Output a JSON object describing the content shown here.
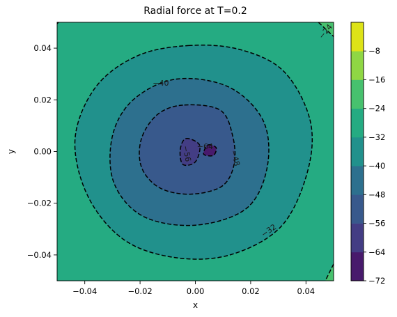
{
  "chart_data": {
    "type": "heatmap",
    "subtype": "filled-contour",
    "title": "Radial force at T=0.2",
    "xlabel": "x",
    "ylabel": "y",
    "xlim": [
      -0.05,
      0.05
    ],
    "ylim": [
      -0.05,
      0.05
    ],
    "x_ticks": [
      -0.04,
      -0.02,
      0.0,
      0.02,
      0.04
    ],
    "x_tick_labels": [
      "−0.04",
      "−0.02",
      "0.00",
      "0.02",
      "0.04"
    ],
    "y_ticks": [
      -0.04,
      -0.02,
      0.0,
      0.02,
      0.04
    ],
    "y_tick_labels": [
      "−0.04",
      "−0.02",
      "0.00",
      "0.02",
      "0.04"
    ],
    "grid": false,
    "colormap": "viridis",
    "levels": [
      -72,
      -64,
      -56,
      -48,
      -40,
      -32,
      -24,
      -16,
      -8
    ],
    "colorbar_tick_labels": [
      "−72",
      "−64",
      "−56",
      "−48",
      "−40",
      "−32",
      "−24",
      "−16",
      "−8"
    ],
    "band_colors": [
      "#481a6c",
      "#433d84",
      "#38598c",
      "#2d708e",
      "#21918c",
      "#25ab82",
      "#47c16e",
      "#8fd744",
      "#dde318"
    ],
    "contour_line_style": "dashed",
    "contour_line_color": "#000000",
    "contours": [
      {
        "level": -32,
        "points": [
          [
            -0.0025,
            0.041
          ],
          [
            0.016,
            0.0395
          ],
          [
            0.032,
            0.031
          ],
          [
            0.0415,
            0.012
          ],
          [
            0.0405,
            -0.008
          ],
          [
            0.031,
            -0.029
          ],
          [
            0.0125,
            -0.04
          ],
          [
            -0.0075,
            -0.041
          ],
          [
            -0.026,
            -0.034
          ],
          [
            -0.039,
            -0.017
          ],
          [
            -0.0435,
            0.005
          ],
          [
            -0.036,
            0.025
          ],
          [
            -0.021,
            0.037
          ]
        ]
      },
      {
        "level": -40,
        "points": [
          [
            -0.007,
            0.028
          ],
          [
            0.012,
            0.025
          ],
          [
            0.0245,
            0.012
          ],
          [
            0.026,
            -0.006
          ],
          [
            0.0185,
            -0.022
          ],
          [
            0.0,
            -0.0285
          ],
          [
            -0.019,
            -0.025
          ],
          [
            -0.0295,
            -0.012
          ],
          [
            -0.03,
            0.006
          ],
          [
            -0.0225,
            0.02
          ]
        ]
      },
      {
        "level": -48,
        "points": [
          [
            -0.004,
            0.018
          ],
          [
            0.009,
            0.016
          ],
          [
            0.0135,
            0.006
          ],
          [
            0.014,
            -0.005
          ],
          [
            0.0095,
            -0.0135
          ],
          [
            -0.002,
            -0.0165
          ],
          [
            -0.013,
            -0.014
          ],
          [
            -0.0195,
            -0.006
          ],
          [
            -0.0195,
            0.005
          ],
          [
            -0.0135,
            0.0145
          ]
        ]
      },
      {
        "level": -56,
        "points": [
          [
            -0.0035,
            0.005
          ],
          [
            0.0015,
            0.0025
          ],
          [
            0.0,
            -0.004
          ],
          [
            -0.0045,
            -0.005
          ],
          [
            -0.0055,
            0.0005
          ]
        ]
      },
      {
        "level": -64,
        "points": [
          [
            0.0045,
            0.0025
          ],
          [
            0.0075,
            0.0015
          ],
          [
            0.0065,
            -0.0015
          ],
          [
            0.003,
            -0.001
          ]
        ]
      }
    ],
    "corner_bands": [
      {
        "level": -24,
        "corner": "top-right",
        "points": [
          [
            0.0445,
            0.05
          ],
          [
            0.05,
            0.0445
          ]
        ]
      },
      {
        "level": -24,
        "corner": "bottom-right",
        "points": [
          [
            0.05,
            -0.0435
          ],
          [
            0.047,
            -0.05
          ]
        ]
      },
      {
        "level": -32,
        "corner": "top-left",
        "points": [
          [
            -0.0495,
            0.05
          ],
          [
            -0.05,
            0.0495
          ]
        ]
      }
    ],
    "annotations": [
      {
        "text": "−32",
        "x": 0.0265,
        "y": -0.0305,
        "rotation": -35
      },
      {
        "text": "−40",
        "x": -0.0125,
        "y": 0.0265,
        "rotation": 0
      },
      {
        "text": "−48",
        "x": 0.0145,
        "y": -0.0025,
        "rotation": 75
      },
      {
        "text": "−56",
        "x": -0.003,
        "y": -0.0008,
        "rotation": 80
      },
      {
        "text": "−64",
        "x": 0.0035,
        "y": 0.002,
        "rotation": 0
      },
      {
        "text": "−24",
        "x": 0.047,
        "y": 0.0465,
        "rotation": -50
      }
    ]
  }
}
